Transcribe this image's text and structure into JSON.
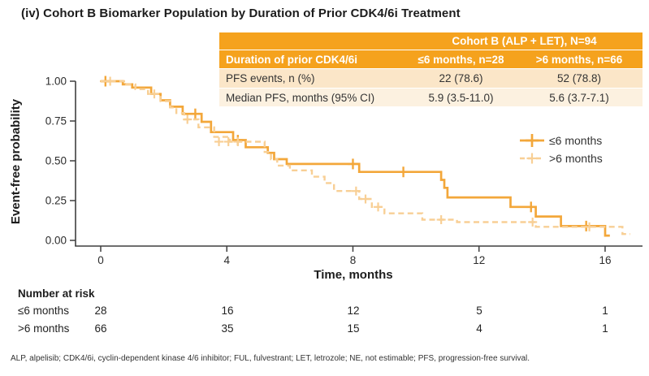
{
  "title": "(iv) Cohort B Biomarker Population by Duration of Prior CDK4/6i Treatment",
  "summary_table": {
    "cohort_header": "Cohort B (ALP + LET), N=94",
    "col_headers": [
      "Duration of prior CDK4/6i",
      "≤6 months, n=28",
      ">6 months, n=66"
    ],
    "rows": [
      {
        "label": "PFS events, n (%)",
        "col1": "22 (78.6)",
        "col2": "52 (78.8)"
      },
      {
        "label": "Median PFS, months (95% CI)",
        "col1": "5.9 (3.5-11.0)",
        "col2": "5.6 (3.7-7.1)"
      }
    ]
  },
  "chart_data": {
    "type": "line",
    "subtype": "kaplan-meier-step",
    "title": "",
    "xlabel": "Time, months",
    "ylabel": "Event-free probability",
    "xlim": [
      0,
      17
    ],
    "ylim": [
      0,
      1
    ],
    "grid": false,
    "legend_position": "right-inside",
    "xticks": [
      {
        "v": 0,
        "label": "0"
      },
      {
        "v": 4,
        "label": "4"
      },
      {
        "v": 8,
        "label": "8"
      },
      {
        "v": 12,
        "label": "12"
      },
      {
        "v": 16,
        "label": "16"
      }
    ],
    "yticks": [
      {
        "v": 1.0,
        "label": "1.00"
      },
      {
        "v": 0.75,
        "label": "0.75"
      },
      {
        "v": 0.5,
        "label": "0.50"
      },
      {
        "v": 0.25,
        "label": "0.25"
      },
      {
        "v": 0.0,
        "label": "0.00"
      }
    ],
    "series": [
      {
        "name": "≤6 months",
        "style": "solid",
        "color": "#F3A73A",
        "steps": [
          [
            0,
            1.0
          ],
          [
            0.7,
            0.98
          ],
          [
            1.0,
            0.96
          ],
          [
            1.6,
            0.92
          ],
          [
            1.9,
            0.88
          ],
          [
            2.2,
            0.84
          ],
          [
            2.6,
            0.795
          ],
          [
            3.2,
            0.745
          ],
          [
            3.5,
            0.68
          ],
          [
            4.2,
            0.63
          ],
          [
            4.6,
            0.585
          ],
          [
            5.3,
            0.55
          ],
          [
            5.5,
            0.51
          ],
          [
            5.9,
            0.48
          ],
          [
            8.2,
            0.43
          ],
          [
            10.8,
            0.38
          ],
          [
            10.9,
            0.33
          ],
          [
            11.0,
            0.27
          ],
          [
            13.0,
            0.21
          ],
          [
            13.8,
            0.15
          ],
          [
            14.6,
            0.09
          ],
          [
            16.0,
            0.03
          ]
        ],
        "end_time": 16.15,
        "censors": [
          [
            0.15,
            1.0
          ],
          [
            3.0,
            0.795
          ],
          [
            4.35,
            0.63
          ],
          [
            8.0,
            0.48
          ],
          [
            9.6,
            0.43
          ],
          [
            13.65,
            0.21
          ],
          [
            15.4,
            0.09
          ]
        ]
      },
      {
        "name": ">6 months",
        "style": "dashed",
        "color": "#F8CF95",
        "steps": [
          [
            0,
            1.0
          ],
          [
            0.8,
            0.98
          ],
          [
            1.1,
            0.95
          ],
          [
            1.5,
            0.92
          ],
          [
            1.9,
            0.875
          ],
          [
            2.2,
            0.835
          ],
          [
            2.4,
            0.8
          ],
          [
            2.65,
            0.76
          ],
          [
            3.1,
            0.71
          ],
          [
            3.6,
            0.65
          ],
          [
            4.1,
            0.62
          ],
          [
            5.2,
            0.555
          ],
          [
            5.4,
            0.51
          ],
          [
            5.6,
            0.47
          ],
          [
            6.0,
            0.44
          ],
          [
            6.7,
            0.4
          ],
          [
            7.1,
            0.36
          ],
          [
            7.4,
            0.31
          ],
          [
            8.2,
            0.26
          ],
          [
            8.6,
            0.21
          ],
          [
            9.0,
            0.17
          ],
          [
            10.2,
            0.13
          ],
          [
            11.3,
            0.115
          ],
          [
            13.8,
            0.085
          ],
          [
            16.55,
            0.04
          ]
        ],
        "end_time": 16.8,
        "censors": [
          [
            0.3,
            1.0
          ],
          [
            1.7,
            0.92
          ],
          [
            2.75,
            0.76
          ],
          [
            3.75,
            0.62
          ],
          [
            4.05,
            0.62
          ],
          [
            4.35,
            0.62
          ],
          [
            8.1,
            0.31
          ],
          [
            8.4,
            0.26
          ],
          [
            8.8,
            0.21
          ],
          [
            10.8,
            0.13
          ],
          [
            13.7,
            0.115
          ],
          [
            15.5,
            0.085
          ]
        ]
      }
    ]
  },
  "risk_table": {
    "title": "Number at risk",
    "times": [
      0,
      4,
      8,
      12,
      16
    ],
    "rows": [
      {
        "label": "≤6 months",
        "values": [
          "28",
          "16",
          "12",
          "5",
          "1"
        ]
      },
      {
        "label": ">6 months",
        "values": [
          "66",
          "35",
          "15",
          "4",
          "1"
        ]
      }
    ]
  },
  "footnote": "ALP, alpelisib; CDK4/6i, cyclin-dependent kinase 4/6 inhibitor; FUL, fulvestrant; LET, letrozole; NE, not estimable; PFS, progression-free survival.",
  "colors": {
    "table_header_orange": "#F5A21D",
    "table_row_peach": "#FBE6C8",
    "table_row_light": "#FCF1E0",
    "solid_series": "#F3A73A",
    "dashed_series": "#F8CF95",
    "axis": "#3f3f3f"
  }
}
